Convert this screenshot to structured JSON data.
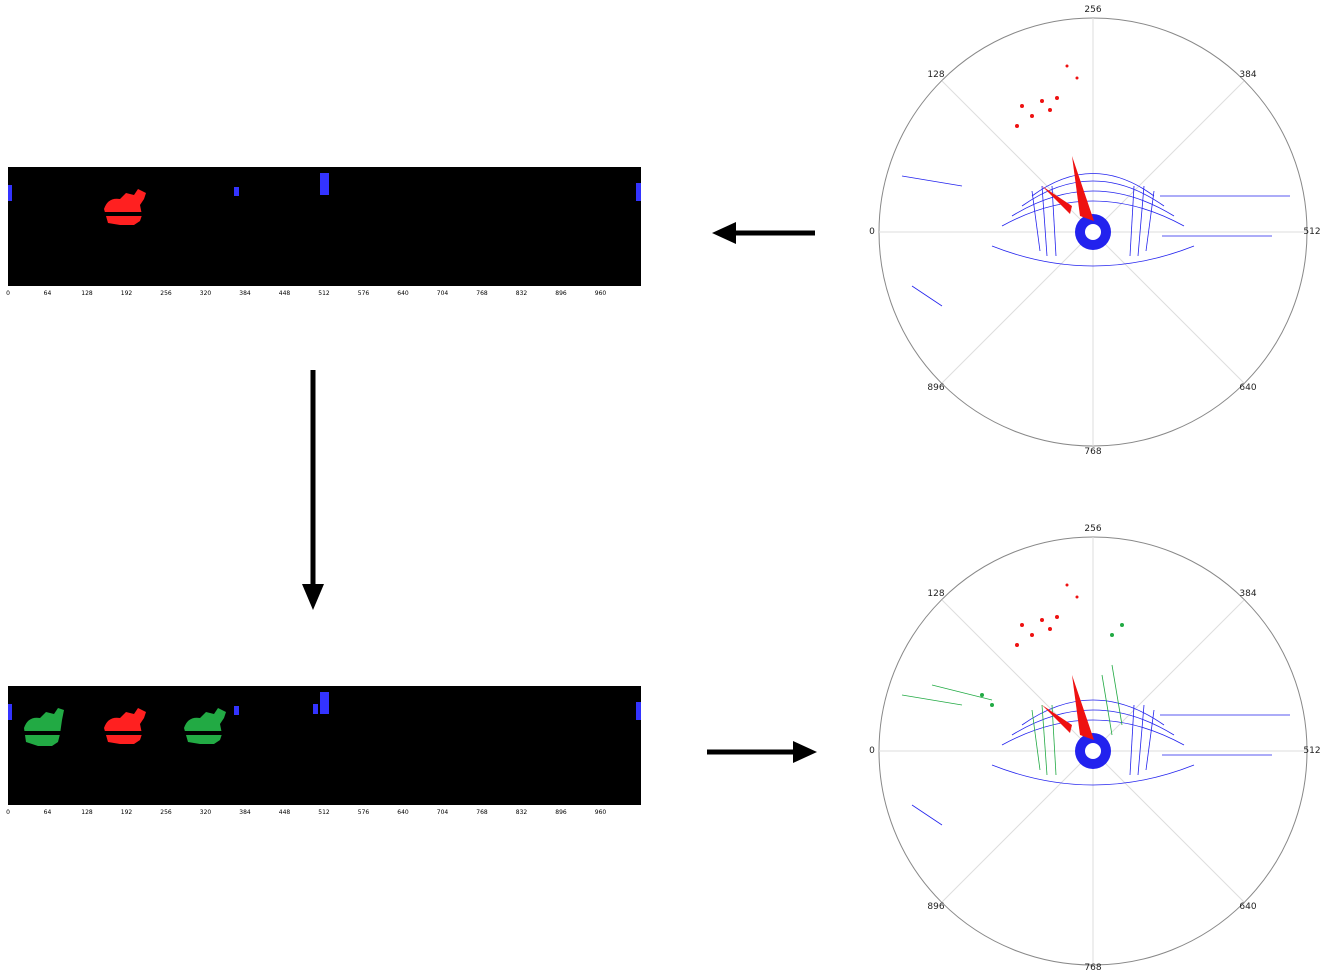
{
  "range_ticks": [
    "0",
    "64",
    "128",
    "192",
    "256",
    "320",
    "384",
    "448",
    "512",
    "576",
    "640",
    "704",
    "768",
    "832",
    "896",
    "960"
  ],
  "polar_labels": {
    "top": "256",
    "top_left": "128",
    "top_right": "384",
    "left": "0",
    "right": "512",
    "bottom_left": "896",
    "bottom_right": "640",
    "bottom": "768"
  },
  "colors": {
    "background_class": "#0000ff",
    "target_object": "#ff0000",
    "augmented_object": "#22aa44",
    "image_bg": "#000000"
  }
}
